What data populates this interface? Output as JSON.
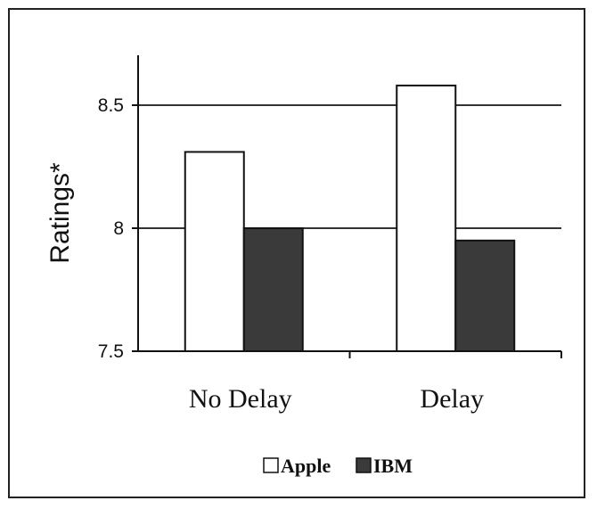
{
  "chart_data": {
    "type": "bar",
    "categories": [
      "No Delay",
      "Delay"
    ],
    "series": [
      {
        "name": "Apple",
        "values": [
          8.31,
          8.58
        ],
        "color": "#ffffff"
      },
      {
        "name": "IBM",
        "values": [
          8.0,
          7.95
        ],
        "color": "#3a3a3a"
      }
    ],
    "ylabel": "Ratings*",
    "ylim": [
      7.5,
      8.7
    ],
    "yticks": [
      7.5,
      8,
      8.5
    ],
    "ytick_labels": [
      "7.5",
      "8",
      "8.5"
    ],
    "gridlines": [
      8,
      8.5
    ],
    "legend": "bottom"
  }
}
